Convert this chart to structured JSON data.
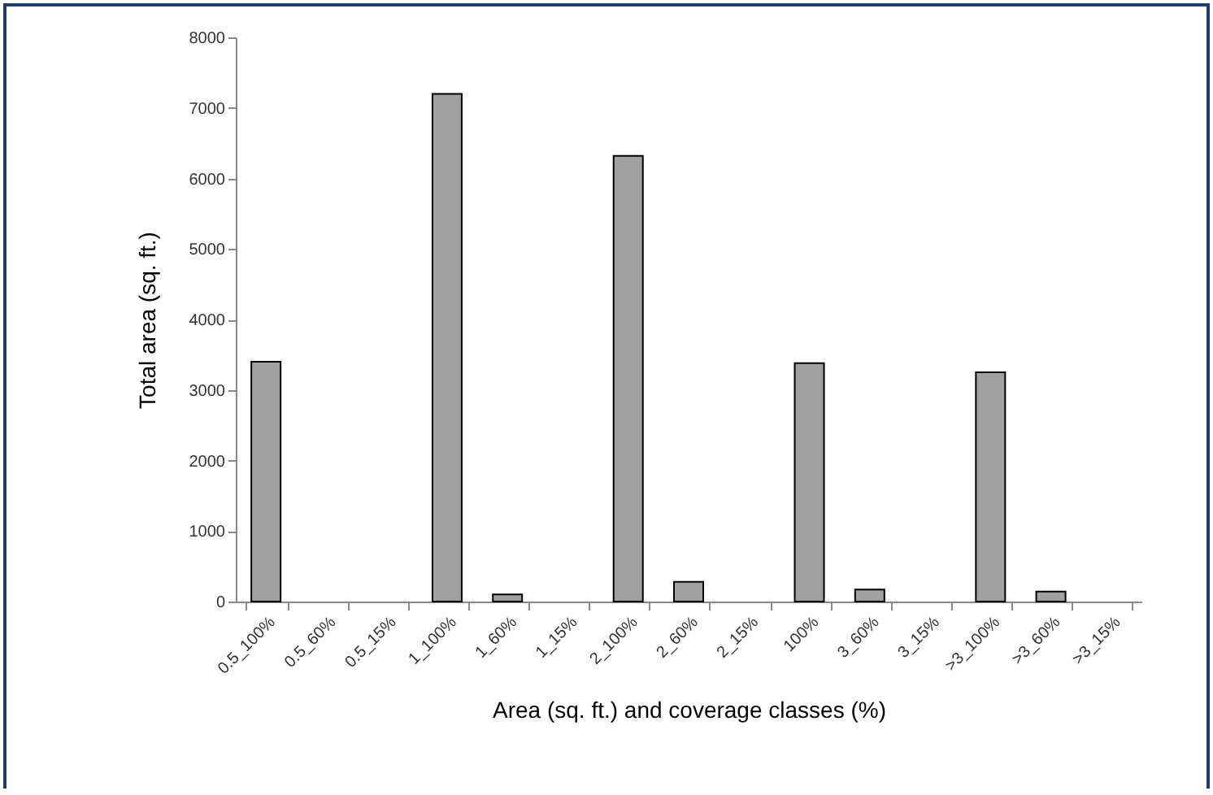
{
  "chart_data": {
    "type": "bar",
    "xlabel": "Area (sq. ft.) and coverage classes (%)",
    "ylabel": "Total area (sq. ft.)",
    "categories": [
      "0.5_100%",
      "0.5_60%",
      "0.5_15%",
      "1_100%",
      "1_60%",
      "1_15%",
      "2_100%",
      "2_60%",
      "2_15%",
      "100%",
      "3_60%",
      "3_15%",
      ">3_100%",
      ">3_60%",
      ">3_15%"
    ],
    "values": [
      3400,
      0,
      0,
      7200,
      100,
      0,
      6320,
      280,
      0,
      3380,
      170,
      0,
      3250,
      140,
      0
    ],
    "color": "#a0a0a0",
    "ylim": [
      0,
      8000
    ],
    "yticks": [
      0,
      1000,
      2000,
      3000,
      4000,
      5000,
      6000,
      7000,
      8000
    ],
    "grid": false
  }
}
